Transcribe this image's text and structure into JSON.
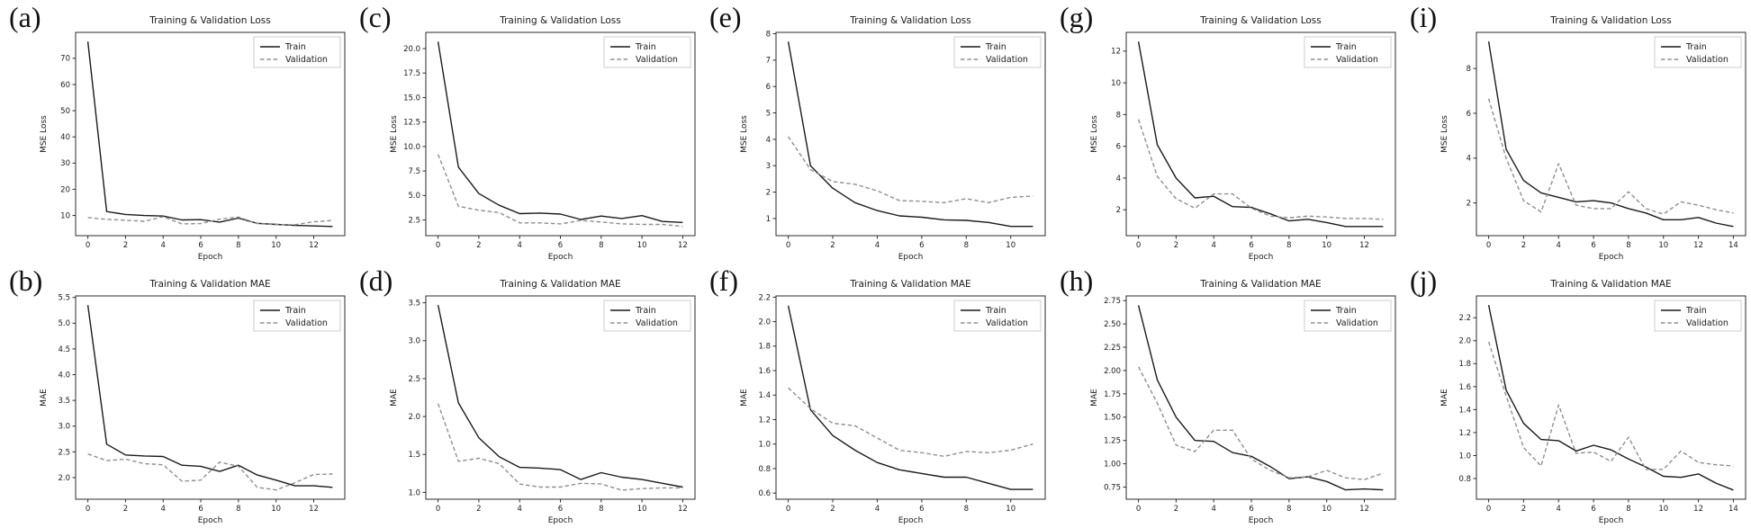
{
  "figure": {
    "train_color": "#1a1a1a",
    "validation_color": "#8f8f8f",
    "text_color": "#1a1a1a",
    "axis_color": "#2b2b2b",
    "legend_border_color": "#cccccc",
    "background_color": "#ffffff"
  },
  "chart_data": [
    {
      "panel_label": "(a)",
      "type": "line",
      "title": "Training & Validation Loss",
      "xlabel": "Epoch",
      "ylabel": "MSE Loss",
      "legend_position": "upper right",
      "grid": false,
      "xlim": [
        -0.65,
        13.65
      ],
      "ylim": [
        2.3,
        79.9
      ],
      "xticks": [
        0,
        2,
        4,
        6,
        8,
        10,
        12
      ],
      "yticks": [
        10,
        20,
        30,
        40,
        50,
        60,
        70
      ],
      "ytick_labels": [
        "10",
        "20",
        "30",
        "40",
        "50",
        "60",
        "70"
      ],
      "x": [
        0,
        1,
        2,
        3,
        4,
        5,
        6,
        7,
        8,
        9,
        10,
        11,
        12,
        13
      ],
      "series": [
        {
          "name": "Train",
          "style": "solid",
          "values": [
            76.4,
            11.5,
            10.4,
            10.0,
            9.8,
            8.3,
            8.4,
            7.5,
            9.0,
            7.0,
            6.6,
            6.2,
            6.0,
            5.8
          ]
        },
        {
          "name": "Validation",
          "style": "dashed",
          "values": [
            9.2,
            8.5,
            8.2,
            7.8,
            9.5,
            6.8,
            6.9,
            8.6,
            9.4,
            6.9,
            6.5,
            6.5,
            7.6,
            8.1
          ]
        }
      ]
    },
    {
      "panel_label": "(b)",
      "type": "line",
      "title": "Training & Validation MAE",
      "xlabel": "Epoch",
      "ylabel": "MAE",
      "legend_position": "upper right",
      "grid": false,
      "xlim": [
        -0.65,
        13.65
      ],
      "ylim": [
        1.58,
        5.53
      ],
      "xticks": [
        0,
        2,
        4,
        6,
        8,
        10,
        12
      ],
      "yticks": [
        2.0,
        2.5,
        3.0,
        3.5,
        4.0,
        4.5,
        5.0,
        5.5
      ],
      "ytick_labels": [
        "2.0",
        "2.5",
        "3.0",
        "3.5",
        "4.0",
        "4.5",
        "5.0",
        "5.5"
      ],
      "x": [
        0,
        1,
        2,
        3,
        4,
        5,
        6,
        7,
        8,
        9,
        10,
        11,
        12,
        13
      ],
      "series": [
        {
          "name": "Train",
          "style": "solid",
          "values": [
            5.35,
            2.65,
            2.44,
            2.42,
            2.41,
            2.24,
            2.22,
            2.12,
            2.24,
            2.05,
            1.95,
            1.84,
            1.84,
            1.81
          ]
        },
        {
          "name": "Validation",
          "style": "dashed",
          "values": [
            2.46,
            2.33,
            2.36,
            2.27,
            2.25,
            1.93,
            1.95,
            2.3,
            2.22,
            1.81,
            1.76,
            1.9,
            2.06,
            2.07
          ]
        }
      ]
    },
    {
      "panel_label": "(c)",
      "type": "line",
      "title": "Training & Validation Loss",
      "xlabel": "Epoch",
      "ylabel": "MSE Loss",
      "legend_position": "upper right",
      "grid": false,
      "xlim": [
        -0.6,
        12.6
      ],
      "ylim": [
        0.9,
        21.65
      ],
      "xticks": [
        0,
        2,
        4,
        6,
        8,
        10,
        12
      ],
      "yticks": [
        2.5,
        5.0,
        7.5,
        10.0,
        12.5,
        15.0,
        17.5,
        20.0
      ],
      "ytick_labels": [
        "2.5",
        "5.0",
        "7.5",
        "10.0",
        "12.5",
        "15.0",
        "17.5",
        "20.0"
      ],
      "x": [
        0,
        1,
        2,
        3,
        4,
        5,
        6,
        7,
        8,
        9,
        10,
        11,
        12
      ],
      "series": [
        {
          "name": "Train",
          "style": "solid",
          "values": [
            20.7,
            7.9,
            5.2,
            4.0,
            3.15,
            3.2,
            3.1,
            2.55,
            2.9,
            2.65,
            2.95,
            2.35,
            2.25
          ]
        },
        {
          "name": "Validation",
          "style": "dashed",
          "values": [
            9.2,
            3.9,
            3.5,
            3.25,
            2.2,
            2.2,
            2.1,
            2.45,
            2.3,
            2.1,
            2.05,
            2.05,
            1.85
          ]
        }
      ]
    },
    {
      "panel_label": "(d)",
      "type": "line",
      "title": "Training & Validation MAE",
      "xlabel": "Epoch",
      "ylabel": "MAE",
      "legend_position": "upper right",
      "grid": false,
      "xlim": [
        -0.6,
        12.6
      ],
      "ylim": [
        0.91,
        3.59
      ],
      "xticks": [
        0,
        2,
        4,
        6,
        8,
        10,
        12
      ],
      "yticks": [
        1.0,
        1.5,
        2.0,
        2.5,
        3.0,
        3.5
      ],
      "ytick_labels": [
        "1.0",
        "1.5",
        "2.0",
        "2.5",
        "3.0",
        "3.5"
      ],
      "x": [
        0,
        1,
        2,
        3,
        4,
        5,
        6,
        7,
        8,
        9,
        10,
        11,
        12
      ],
      "series": [
        {
          "name": "Train",
          "style": "solid",
          "values": [
            3.47,
            2.18,
            1.72,
            1.47,
            1.33,
            1.32,
            1.3,
            1.17,
            1.26,
            1.2,
            1.17,
            1.12,
            1.07
          ]
        },
        {
          "name": "Validation",
          "style": "dashed",
          "values": [
            2.17,
            1.41,
            1.45,
            1.38,
            1.11,
            1.07,
            1.07,
            1.12,
            1.11,
            1.03,
            1.05,
            1.06,
            1.06
          ]
        }
      ]
    },
    {
      "panel_label": "(e)",
      "type": "line",
      "title": "Training & Validation Loss",
      "xlabel": "Epoch",
      "ylabel": "MSE Loss",
      "legend_position": "upper right",
      "grid": false,
      "xlim": [
        -0.55,
        11.55
      ],
      "ylim": [
        0.35,
        8.05
      ],
      "xticks": [
        0,
        2,
        4,
        6,
        8,
        10
      ],
      "yticks": [
        1,
        2,
        3,
        4,
        5,
        6,
        7,
        8
      ],
      "ytick_labels": [
        "1",
        "2",
        "3",
        "4",
        "5",
        "6",
        "7",
        "8"
      ],
      "x": [
        0,
        1,
        2,
        3,
        4,
        5,
        6,
        7,
        8,
        9,
        10,
        11
      ],
      "series": [
        {
          "name": "Train",
          "style": "solid",
          "values": [
            7.7,
            3.0,
            2.15,
            1.6,
            1.3,
            1.1,
            1.05,
            0.95,
            0.93,
            0.85,
            0.7,
            0.7
          ]
        },
        {
          "name": "Validation",
          "style": "dashed",
          "values": [
            4.1,
            2.85,
            2.4,
            2.3,
            2.05,
            1.68,
            1.65,
            1.6,
            1.75,
            1.6,
            1.8,
            1.85
          ]
        }
      ]
    },
    {
      "panel_label": "(f)",
      "type": "line",
      "title": "Training & Validation MAE",
      "xlabel": "Epoch",
      "ylabel": "MAE",
      "legend_position": "upper right",
      "grid": false,
      "xlim": [
        -0.55,
        11.55
      ],
      "ylim": [
        0.55,
        2.21
      ],
      "xticks": [
        0,
        2,
        4,
        6,
        8,
        10
      ],
      "yticks": [
        0.6,
        0.8,
        1.0,
        1.2,
        1.4,
        1.6,
        1.8,
        2.0,
        2.2
      ],
      "ytick_labels": [
        "0.6",
        "0.8",
        "1.0",
        "1.2",
        "1.4",
        "1.6",
        "1.8",
        "2.0",
        "2.2"
      ],
      "x": [
        0,
        1,
        2,
        3,
        4,
        5,
        6,
        7,
        8,
        9,
        10,
        11
      ],
      "series": [
        {
          "name": "Train",
          "style": "solid",
          "values": [
            2.13,
            1.28,
            1.07,
            0.95,
            0.85,
            0.79,
            0.76,
            0.73,
            0.73,
            0.68,
            0.63,
            0.63
          ]
        },
        {
          "name": "Validation",
          "style": "dashed",
          "values": [
            1.46,
            1.29,
            1.17,
            1.15,
            1.05,
            0.95,
            0.93,
            0.9,
            0.94,
            0.93,
            0.95,
            1.0
          ]
        }
      ]
    },
    {
      "panel_label": "(g)",
      "type": "line",
      "title": "Training & Validation Loss",
      "xlabel": "Epoch",
      "ylabel": "MSE Loss",
      "legend_position": "upper right",
      "grid": false,
      "xlim": [
        -0.65,
        13.65
      ],
      "ylim": [
        0.37,
        13.18
      ],
      "xticks": [
        0,
        2,
        4,
        6,
        8,
        10,
        12
      ],
      "yticks": [
        2,
        4,
        6,
        8,
        10,
        12
      ],
      "ytick_labels": [
        "2",
        "4",
        "6",
        "8",
        "10",
        "12"
      ],
      "x": [
        0,
        1,
        2,
        3,
        4,
        5,
        6,
        7,
        8,
        9,
        10,
        11,
        12,
        13
      ],
      "series": [
        {
          "name": "Train",
          "style": "solid",
          "values": [
            12.6,
            6.1,
            4.0,
            2.75,
            2.85,
            2.2,
            2.15,
            1.75,
            1.3,
            1.4,
            1.2,
            0.95,
            0.95,
            0.95
          ]
        },
        {
          "name": "Validation",
          "style": "dashed",
          "values": [
            7.7,
            4.1,
            2.7,
            2.1,
            3.0,
            3.0,
            2.1,
            1.6,
            1.5,
            1.6,
            1.55,
            1.45,
            1.45,
            1.4
          ]
        }
      ]
    },
    {
      "panel_label": "(h)",
      "type": "line",
      "title": "Training & Validation MAE",
      "xlabel": "Epoch",
      "ylabel": "MAE",
      "legend_position": "upper right",
      "grid": false,
      "xlim": [
        -0.65,
        13.65
      ],
      "ylim": [
        0.62,
        2.8
      ],
      "xticks": [
        0,
        2,
        4,
        6,
        8,
        10,
        12
      ],
      "yticks": [
        0.75,
        1.0,
        1.25,
        1.5,
        1.75,
        2.0,
        2.25,
        2.5,
        2.75
      ],
      "ytick_labels": [
        "0.75",
        "1.00",
        "1.25",
        "1.50",
        "1.75",
        "2.00",
        "2.25",
        "2.50",
        "2.75"
      ],
      "x": [
        0,
        1,
        2,
        3,
        4,
        5,
        6,
        7,
        8,
        9,
        10,
        11,
        12,
        13
      ],
      "series": [
        {
          "name": "Train",
          "style": "solid",
          "values": [
            2.7,
            1.9,
            1.5,
            1.25,
            1.24,
            1.12,
            1.08,
            0.97,
            0.84,
            0.86,
            0.81,
            0.72,
            0.73,
            0.72
          ]
        },
        {
          "name": "Validation",
          "style": "dashed",
          "values": [
            2.04,
            1.65,
            1.2,
            1.13,
            1.36,
            1.36,
            1.05,
            0.93,
            0.85,
            0.86,
            0.93,
            0.85,
            0.83,
            0.9
          ]
        }
      ]
    },
    {
      "panel_label": "(i)",
      "type": "line",
      "title": "Training & Validation Loss",
      "xlabel": "Epoch",
      "ylabel": "MSE Loss",
      "legend_position": "upper right",
      "grid": false,
      "xlim": [
        -0.7,
        14.7
      ],
      "ylim": [
        0.54,
        9.61
      ],
      "xticks": [
        0,
        2,
        4,
        6,
        8,
        10,
        12,
        14
      ],
      "yticks": [
        2,
        4,
        6,
        8
      ],
      "ytick_labels": [
        "2",
        "4",
        "6",
        "8"
      ],
      "x": [
        0,
        1,
        2,
        3,
        4,
        5,
        6,
        7,
        8,
        9,
        10,
        11,
        12,
        13,
        14
      ],
      "series": [
        {
          "name": "Train",
          "style": "solid",
          "values": [
            9.2,
            4.4,
            3.0,
            2.45,
            2.25,
            2.05,
            2.1,
            2.0,
            1.75,
            1.55,
            1.25,
            1.25,
            1.35,
            1.1,
            0.95
          ]
        },
        {
          "name": "Validation",
          "style": "dashed",
          "values": [
            6.65,
            4.0,
            2.1,
            1.6,
            3.75,
            1.9,
            1.75,
            1.75,
            2.5,
            1.75,
            1.5,
            2.05,
            1.9,
            1.7,
            1.55
          ]
        }
      ]
    },
    {
      "panel_label": "(j)",
      "type": "line",
      "title": "Training & Validation MAE",
      "xlabel": "Epoch",
      "ylabel": "MAE",
      "legend_position": "upper right",
      "grid": false,
      "xlim": [
        -0.7,
        14.7
      ],
      "ylim": [
        0.62,
        2.39
      ],
      "xticks": [
        0,
        2,
        4,
        6,
        8,
        10,
        12,
        14
      ],
      "yticks": [
        0.8,
        1.0,
        1.2,
        1.4,
        1.6,
        1.8,
        2.0,
        2.2
      ],
      "ytick_labels": [
        "0.8",
        "1.0",
        "1.2",
        "1.4",
        "1.6",
        "1.8",
        "2.0",
        "2.2"
      ],
      "x": [
        0,
        1,
        2,
        3,
        4,
        5,
        6,
        7,
        8,
        9,
        10,
        11,
        12,
        13,
        14
      ],
      "series": [
        {
          "name": "Train",
          "style": "solid",
          "values": [
            2.31,
            1.57,
            1.28,
            1.14,
            1.13,
            1.04,
            1.09,
            1.05,
            0.97,
            0.9,
            0.82,
            0.81,
            0.84,
            0.76,
            0.7
          ]
        },
        {
          "name": "Validation",
          "style": "dashed",
          "values": [
            1.99,
            1.52,
            1.07,
            0.91,
            1.44,
            1.02,
            1.03,
            0.95,
            1.16,
            0.88,
            0.88,
            1.04,
            0.94,
            0.92,
            0.91
          ]
        }
      ]
    }
  ]
}
